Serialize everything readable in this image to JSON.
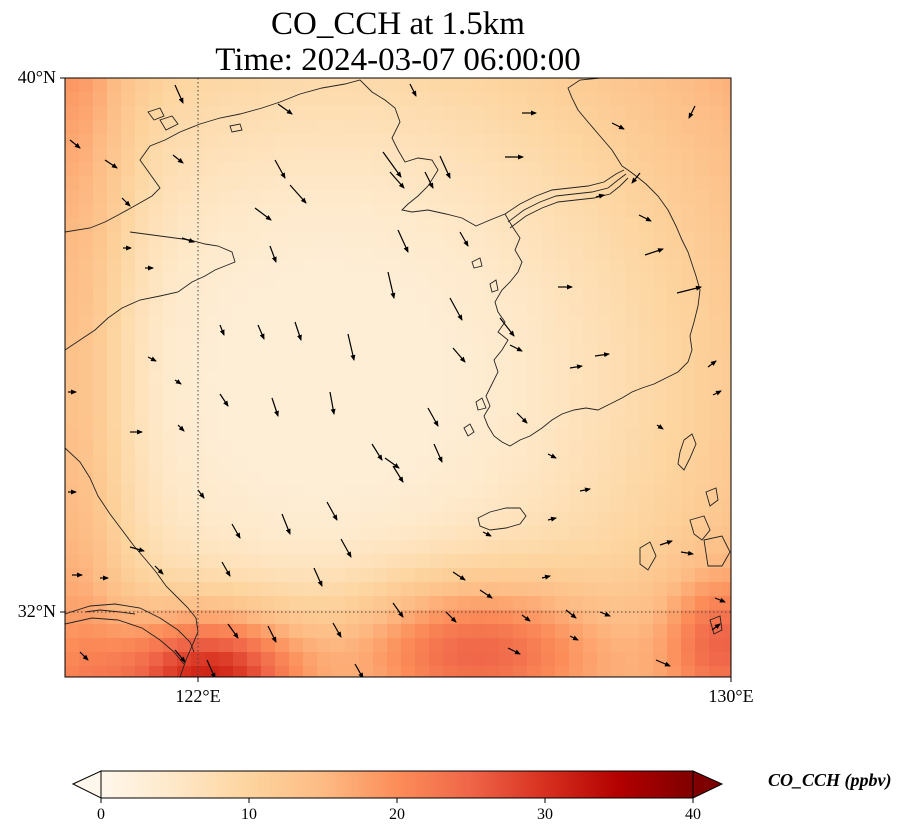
{
  "figure": {
    "title": "CO_CCH at 1.5km",
    "subtitle": "Time: 2024-03-07 06:00:00"
  },
  "map": {
    "projection": "PlateCarree",
    "lon_range": [
      119.5,
      130
    ],
    "lat_range": [
      30.75,
      40
    ],
    "lat_labels": [
      "40°N",
      "32°N"
    ],
    "lon_labels": [
      "122°E",
      "130°E"
    ],
    "gridlines": {
      "lons": [
        122
      ],
      "lats": [
        32
      ],
      "style": "dotted"
    },
    "features": [
      "coastline",
      "wind-vectors",
      "concentration-field"
    ]
  },
  "colorbar": {
    "label": "CO_CCH (ppbv)",
    "colormap": "OrRd",
    "vmin": 0,
    "vmax": 40,
    "ticks": [
      "0",
      "10",
      "20",
      "30",
      "40"
    ],
    "extend": "both",
    "colors": [
      "#fff7ec",
      "#fee8c8",
      "#fdd49e",
      "#fdbb84",
      "#fc8d59",
      "#ef6548",
      "#d7301f",
      "#b30000",
      "#7f0000"
    ]
  }
}
